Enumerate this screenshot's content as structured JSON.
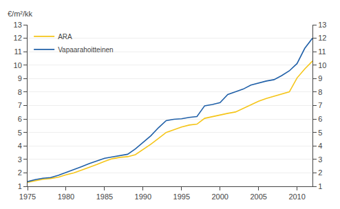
{
  "chart_data": {
    "type": "line",
    "ylabel": "€/m²/kk",
    "series": [
      {
        "name": "ARA",
        "color": "#f5c518",
        "x": [
          1975,
          1976,
          1977,
          1978,
          1979,
          1980,
          1981,
          1982,
          1983,
          1984,
          1985,
          1986,
          1987,
          1988,
          1989,
          1990,
          1991,
          1992,
          1993,
          1994,
          1995,
          1996,
          1997,
          1998,
          1999,
          2000,
          2001,
          2002,
          2003,
          2004,
          2005,
          2006,
          2007,
          2008,
          2009,
          2010,
          2011,
          2012
        ],
        "values": [
          1.3,
          1.42,
          1.52,
          1.58,
          1.68,
          1.85,
          2.0,
          2.2,
          2.4,
          2.62,
          2.85,
          3.05,
          3.15,
          3.2,
          3.35,
          3.72,
          4.12,
          4.55,
          5.0,
          5.2,
          5.4,
          5.55,
          5.62,
          6.05,
          6.18,
          6.28,
          6.42,
          6.52,
          6.78,
          7.02,
          7.32,
          7.52,
          7.68,
          7.82,
          8.02,
          9.05,
          9.72,
          10.3
        ]
      },
      {
        "name": "Vapaarahoitteinen",
        "color": "#2060a8",
        "x": [
          1975,
          1976,
          1977,
          1978,
          1979,
          1980,
          1981,
          1982,
          1983,
          1984,
          1985,
          1986,
          1987,
          1988,
          1989,
          1990,
          1991,
          1992,
          1993,
          1994,
          1995,
          1996,
          1997,
          1998,
          1999,
          2000,
          2001,
          2002,
          2003,
          2004,
          2005,
          2006,
          2007,
          2008,
          2009,
          2010,
          2011,
          2012
        ],
        "values": [
          1.35,
          1.5,
          1.6,
          1.65,
          1.82,
          2.02,
          2.22,
          2.45,
          2.68,
          2.88,
          3.08,
          3.18,
          3.28,
          3.38,
          3.78,
          4.25,
          4.75,
          5.35,
          5.88,
          5.98,
          6.02,
          6.12,
          6.18,
          6.98,
          7.08,
          7.22,
          7.82,
          8.02,
          8.22,
          8.52,
          8.68,
          8.82,
          8.92,
          9.22,
          9.58,
          10.12,
          11.25,
          12.0
        ]
      }
    ],
    "xlim": [
      1975,
      2012
    ],
    "xticks": [
      1975,
      1980,
      1985,
      1990,
      1995,
      2000,
      2005,
      2010
    ],
    "ylim": [
      1,
      13
    ],
    "yticks": [
      1,
      2,
      3,
      4,
      5,
      6,
      7,
      8,
      9,
      10,
      11,
      12,
      13
    ],
    "y2lim": [
      1,
      13
    ],
    "y2ticks": [
      1,
      2,
      3,
      4,
      5,
      6,
      7,
      8,
      9,
      10,
      11,
      12,
      13
    ],
    "grid": "y",
    "legend": "upper left"
  }
}
